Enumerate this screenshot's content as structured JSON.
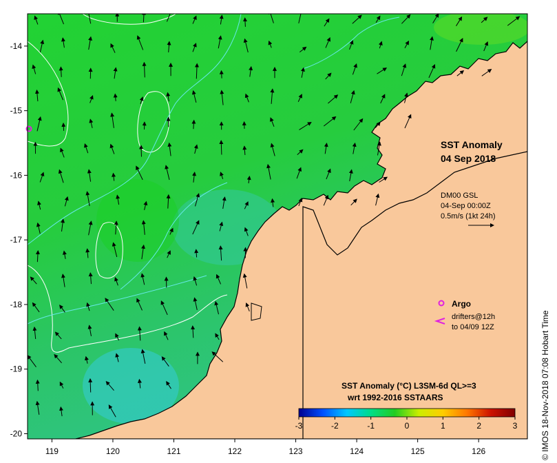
{
  "map": {
    "title_line1": "SST Anomaly",
    "title_line2": "04 Sep 2018",
    "current_info": [
      "DM00 GSL",
      "04-Sep 00:00Z",
      "0.5m/s (1kt 24h)"
    ],
    "argo_label": "Argo",
    "drifter_label_line1": "drifters@12h",
    "drifter_label_line2": "to 04/09 12Z",
    "colorbar_title_line1": "SST Anomaly (°C) L3SM-6d QL>=3",
    "colorbar_title_line2": "wrt 1992-2016 SSTAARS",
    "credit": "© IMOS 18-Nov-2018 07:08 Hobart Time",
    "colors": {
      "land": "#f9c89b",
      "sea_green": "#2dca3a",
      "sea_cyan": "#33c9c9",
      "argo": "#e020e0"
    },
    "colorbar": {
      "min": -3,
      "max": 3,
      "tick_labels": [
        "-3",
        "-2",
        "-1",
        "0",
        "1",
        "2",
        "3"
      ],
      "stops": [
        "#000090",
        "#0050ff",
        "#00c8ff",
        "#00dd88",
        "#22cc22",
        "#ccee00",
        "#ffcc00",
        "#ff7700",
        "#cc1100",
        "#800000"
      ]
    },
    "x_axis": {
      "range": [
        118.6,
        126.8
      ],
      "tick_values": [
        119,
        120,
        121,
        122,
        123,
        124,
        125,
        126
      ],
      "tick_labels": [
        "119",
        "120",
        "121",
        "122",
        "123",
        "124",
        "125",
        "126"
      ]
    },
    "y_axis": {
      "range": [
        -20.08,
        -13.5
      ],
      "tick_values": [
        -14,
        -15,
        -16,
        -17,
        -18,
        -19,
        -20
      ],
      "tick_labels": [
        "-14",
        "-15",
        "-16",
        "-17",
        "-18",
        "-19",
        "-20"
      ]
    },
    "icons": [
      "argo-float-icon",
      "drifter-icon",
      "current-scale-arrow-icon"
    ]
  }
}
